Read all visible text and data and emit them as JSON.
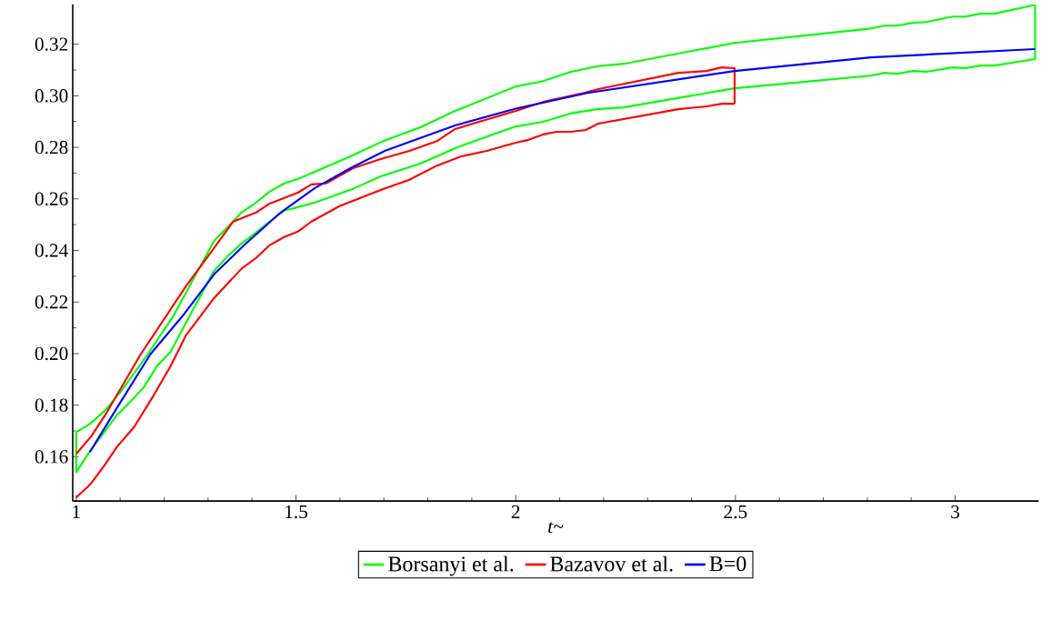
{
  "chart_data": {
    "type": "line",
    "xlabel": "*t*~",
    "xlim": [
      0.992,
      3.19
    ],
    "ylim": [
      0.1428,
      0.3355
    ],
    "xticks": [
      1,
      1.5,
      2,
      2.5,
      3
    ],
    "yticks": [
      0.16,
      0.18,
      {
        "value": 0.2,
        "label": "0.20"
      },
      0.22,
      0.24,
      0.26,
      0.28,
      {
        "value": 0.3,
        "label": "0.30"
      },
      0.32
    ],
    "legend": "bottom",
    "marker": "none",
    "line_style": "solid",
    "series": [
      {
        "name": "Borsanyi et al.",
        "color": "#00ff00",
        "x": [
          1.0,
          1.031,
          1.066,
          1.103,
          1.163,
          1.221,
          1.314,
          1.345,
          1.376,
          1.409,
          1.44,
          1.473,
          1.504,
          1.624,
          1.694,
          1.783,
          1.862,
          2.0,
          2.062,
          2.124,
          2.184,
          2.246,
          2.498,
          2.808,
          2.839,
          2.868,
          2.903,
          2.934,
          2.994,
          3.023,
          3.058,
          3.089,
          3.182
        ],
        "values": [
          0.1695,
          0.1727,
          0.178,
          0.1857,
          0.1998,
          0.2146,
          0.2438,
          0.2491,
          0.2547,
          0.2586,
          0.2628,
          0.266,
          0.2677,
          0.2765,
          0.2821,
          0.2878,
          0.2941,
          0.3036,
          0.3057,
          0.3092,
          0.3114,
          0.3124,
          0.3205,
          0.3261,
          0.3272,
          0.3272,
          0.3283,
          0.3286,
          0.3307,
          0.3307,
          0.3318,
          0.3318,
          0.3353
        ]
      },
      {
        "color": "#00ff00",
        "x": [
          1.0,
          1.0,
          1.031,
          1.093,
          1.124,
          1.153,
          1.186,
          1.215,
          1.258,
          1.314,
          1.345,
          1.376,
          1.409,
          1.44,
          1.473,
          1.504,
          1.543,
          1.624,
          1.694,
          1.783,
          1.862,
          2.0,
          2.062,
          2.124,
          2.184,
          2.246,
          2.498,
          2.808,
          2.839,
          2.868,
          2.903,
          2.934,
          2.994,
          3.023,
          3.058,
          3.089,
          3.182,
          3.182
        ],
        "values": [
          0.1695,
          0.154,
          0.1621,
          0.1762,
          0.1815,
          0.1868,
          0.1956,
          0.2008,
          0.2146,
          0.2322,
          0.2378,
          0.2427,
          0.2469,
          0.2512,
          0.2554,
          0.2568,
          0.2586,
          0.2635,
          0.2688,
          0.2737,
          0.2797,
          0.2881,
          0.2899,
          0.2931,
          0.2948,
          0.2955,
          0.3029,
          0.3078,
          0.3089,
          0.3085,
          0.3096,
          0.3093,
          0.311,
          0.3107,
          0.3117,
          0.3117,
          0.3142,
          0.3353
        ]
      },
      {
        "name": "Bazavov et al.",
        "color": "#ff0000",
        "x": [
          1.0,
          1.035,
          1.066,
          1.147,
          1.25,
          1.314,
          1.357,
          1.409,
          1.44,
          1.504,
          1.535,
          1.568,
          1.63,
          1.694,
          1.758,
          1.822,
          1.862,
          2.0,
          2.062,
          2.155,
          2.188,
          2.37,
          2.434,
          2.469,
          2.498,
          2.498
        ],
        "values": [
          0.1611,
          0.1681,
          0.1762,
          0.1998,
          0.2262,
          0.241,
          0.2512,
          0.2547,
          0.2582,
          0.2624,
          0.2656,
          0.266,
          0.2719,
          0.2755,
          0.2786,
          0.2825,
          0.2871,
          0.2941,
          0.2976,
          0.3011,
          0.3026,
          0.3089,
          0.3096,
          0.311,
          0.3107,
          0.2969
        ]
      },
      {
        "color": "#ff0000",
        "x": [
          1.0,
          1.031,
          1.062,
          1.093,
          1.132,
          1.174,
          1.215,
          1.25,
          1.314,
          1.376,
          1.409,
          1.44,
          1.473,
          1.504,
          1.535,
          1.599,
          1.694,
          1.758,
          1.822,
          1.876,
          1.934,
          2.0,
          2.029,
          2.062,
          2.093,
          2.124,
          2.159,
          2.188,
          2.37,
          2.434,
          2.469,
          2.498
        ],
        "values": [
          0.1442,
          0.1491,
          0.1561,
          0.1639,
          0.1716,
          0.1832,
          0.1952,
          0.2072,
          0.2216,
          0.2329,
          0.2371,
          0.242,
          0.2452,
          0.2473,
          0.2512,
          0.2572,
          0.2635,
          0.2674,
          0.273,
          0.2765,
          0.2786,
          0.2818,
          0.2829,
          0.285,
          0.286,
          0.286,
          0.2867,
          0.2892,
          0.2948,
          0.2959,
          0.2969,
          0.2969
        ]
      },
      {
        "name": "B=0",
        "color": "#0000ff",
        "x": [
          1.031,
          1.1,
          1.169,
          1.242,
          1.314,
          1.384,
          1.465,
          1.543,
          1.624,
          1.702,
          1.783,
          1.862,
          2.0,
          2.163,
          2.498,
          2.808,
          3.182
        ],
        "values": [
          0.1618,
          0.181,
          0.1998,
          0.2146,
          0.2308,
          0.2424,
          0.2547,
          0.2642,
          0.2719,
          0.2786,
          0.2836,
          0.2885,
          0.295,
          0.3011,
          0.3096,
          0.3149,
          0.3181
        ]
      }
    ]
  }
}
